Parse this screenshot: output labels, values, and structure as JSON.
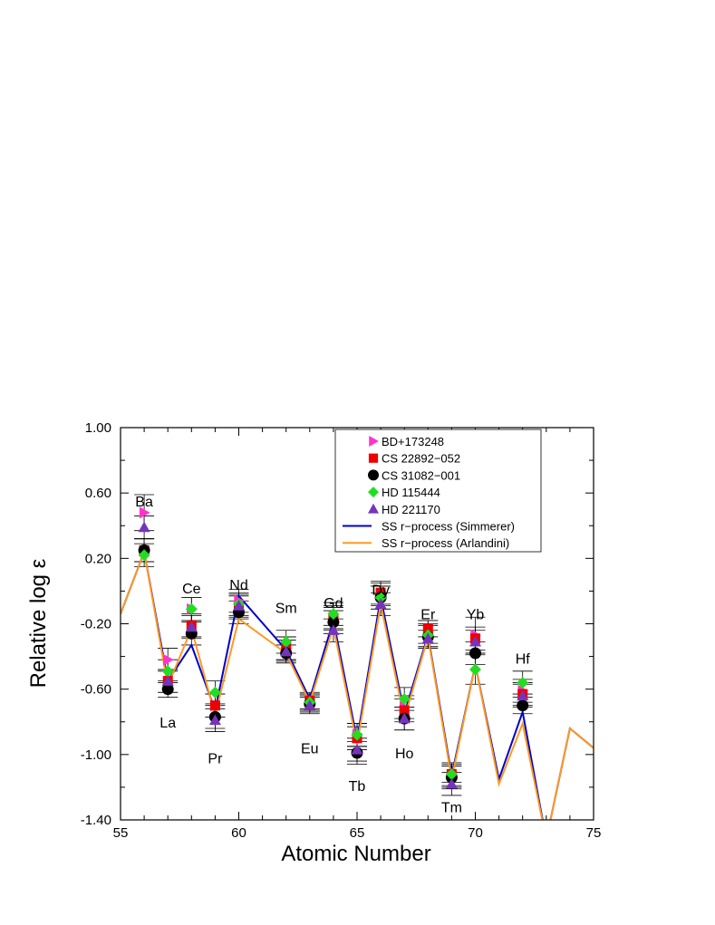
{
  "chart_data": {
    "type": "scatter",
    "xlabel": "Atomic Number",
    "ylabel": "Relative log ε",
    "xlim": [
      55,
      75
    ],
    "ylim": [
      -1.4,
      1.0
    ],
    "x_ticks": [
      "55",
      "60",
      "65",
      "70",
      "75"
    ],
    "y_ticks": [
      "1.00",
      "0.60",
      "0.20",
      "-0.20",
      "-0.60",
      "-1.00",
      "-1.40"
    ],
    "legend_position": "top-right",
    "element_labels": [
      {
        "text": "Ba",
        "x": 56,
        "y": 0.55
      },
      {
        "text": "La",
        "x": 57,
        "y": -0.8
      },
      {
        "text": "Ce",
        "x": 58,
        "y": 0.02
      },
      {
        "text": "Pr",
        "x": 59,
        "y": -1.02
      },
      {
        "text": "Nd",
        "x": 60,
        "y": 0.04
      },
      {
        "text": "Sm",
        "x": 62,
        "y": -0.1
      },
      {
        "text": "Eu",
        "x": 63,
        "y": -0.96
      },
      {
        "text": "Gd",
        "x": 64,
        "y": -0.07
      },
      {
        "text": "Dy",
        "x": 66,
        "y": 0.01
      },
      {
        "text": "Tb",
        "x": 65,
        "y": -1.19
      },
      {
        "text": "Er",
        "x": 68,
        "y": -0.14
      },
      {
        "text": "Ho",
        "x": 67,
        "y": -0.99
      },
      {
        "text": "Yb",
        "x": 70,
        "y": -0.14
      },
      {
        "text": "Tm",
        "x": 69,
        "y": -1.32
      },
      {
        "text": "Hf",
        "x": 72,
        "y": -0.41
      }
    ],
    "series": [
      {
        "name": "BD+173248",
        "marker": "triangle-right",
        "color": "#ff33cc",
        "x": [
          56,
          57,
          58,
          59,
          60,
          62,
          63,
          64,
          65,
          66,
          67,
          68,
          69,
          70,
          72
        ],
        "y": [
          0.48,
          -0.42,
          -0.11,
          -0.7,
          -0.06,
          -0.35,
          -0.68,
          -0.16,
          -0.88,
          -0.02,
          -0.71,
          -0.25,
          -1.13,
          -0.27,
          -0.61
        ],
        "err": [
          0.11,
          0.07,
          0.07,
          0.07,
          0.07,
          0.07,
          0.05,
          0.07,
          0.07,
          0.07,
          0.07,
          0.07,
          0.07,
          0.11,
          0.07
        ]
      },
      {
        "name": "CS 22892−052",
        "marker": "square",
        "color": "#ee0000",
        "x": [
          56,
          57,
          58,
          59,
          60,
          62,
          63,
          64,
          65,
          66,
          67,
          68,
          69,
          70,
          72
        ],
        "y": [
          0.25,
          -0.55,
          -0.21,
          -0.7,
          -0.1,
          -0.35,
          -0.67,
          -0.17,
          -0.9,
          -0.01,
          -0.73,
          -0.23,
          -1.12,
          -0.29,
          -0.63
        ],
        "err": [
          0.07,
          0.07,
          0.07,
          0.07,
          0.07,
          0.07,
          0.05,
          0.07,
          0.07,
          0.07,
          0.07,
          0.05,
          0.07,
          0.07,
          0.07
        ]
      },
      {
        "name": "CS 31082−001",
        "marker": "circle",
        "color": "#000000",
        "x": [
          56,
          57,
          58,
          59,
          60,
          62,
          63,
          64,
          65,
          66,
          67,
          68,
          69,
          70,
          72
        ],
        "y": [
          0.25,
          -0.6,
          -0.26,
          -0.77,
          -0.13,
          -0.38,
          -0.69,
          -0.19,
          -0.99,
          -0.04,
          -0.78,
          -0.28,
          -1.14,
          -0.38,
          -0.7
        ],
        "err": [
          0.07,
          0.05,
          0.07,
          0.07,
          0.07,
          0.05,
          0.05,
          0.07,
          0.07,
          0.07,
          0.07,
          0.07,
          0.07,
          0.07,
          0.05
        ]
      },
      {
        "name": "HD 115444",
        "marker": "diamond",
        "color": "#22dd22",
        "x": [
          56,
          57,
          58,
          59,
          60,
          62,
          63,
          64,
          65,
          66,
          67,
          68,
          69,
          70,
          72
        ],
        "y": [
          0.22,
          -0.49,
          -0.11,
          -0.62,
          -0.08,
          -0.31,
          -0.68,
          -0.14,
          -0.88,
          -0.04,
          -0.66,
          -0.27,
          -1.12,
          -0.48,
          -0.56
        ],
        "err": [
          0.07,
          0.07,
          0.07,
          0.07,
          0.07,
          0.07,
          0.05,
          0.07,
          0.07,
          0.07,
          0.07,
          0.07,
          0.05,
          0.09,
          0.07
        ]
      },
      {
        "name": "HD 221170",
        "marker": "triangle-up",
        "color": "#7733bb",
        "x": [
          56,
          57,
          58,
          59,
          60,
          62,
          63,
          64,
          65,
          66,
          67,
          68,
          69,
          70,
          72
        ],
        "y": [
          0.39,
          -0.55,
          -0.22,
          -0.79,
          -0.09,
          -0.37,
          -0.7,
          -0.24,
          -0.97,
          -0.08,
          -0.78,
          -0.29,
          -1.18,
          -0.31,
          -0.64
        ],
        "err": [
          0.07,
          0.07,
          0.07,
          0.07,
          0.07,
          0.07,
          0.05,
          0.07,
          0.07,
          0.07,
          0.07,
          0.05,
          0.07,
          0.07,
          0.07
        ]
      }
    ],
    "lines": [
      {
        "name": "SS r−process (Simmerer)",
        "color": "#0000cc",
        "x": [
          55,
          56,
          57,
          58,
          59,
          60,
          62,
          63,
          64,
          65,
          66,
          67,
          68,
          69,
          70,
          71,
          72,
          73,
          74,
          75
        ],
        "y": [
          -0.14,
          0.24,
          -0.55,
          -0.33,
          -0.73,
          -0.03,
          -0.36,
          -0.66,
          -0.18,
          -0.91,
          -0.04,
          -0.75,
          -0.27,
          -1.13,
          -0.45,
          -1.15,
          -0.74,
          -1.52,
          -0.84,
          -0.96
        ]
      },
      {
        "name": "SS r−process (Arlandini)",
        "color": "#ff9922",
        "x": [
          55,
          56,
          57,
          58,
          59,
          60,
          62,
          63,
          64,
          65,
          66,
          67,
          68,
          69,
          70,
          71,
          72,
          73,
          74,
          75
        ],
        "y": [
          -0.14,
          0.24,
          -0.58,
          -0.23,
          -0.76,
          -0.17,
          -0.38,
          -0.68,
          -0.22,
          -0.94,
          -0.08,
          -0.78,
          -0.28,
          -1.15,
          -0.45,
          -1.18,
          -0.81,
          -1.52,
          -0.84,
          -0.96
        ]
      }
    ]
  }
}
